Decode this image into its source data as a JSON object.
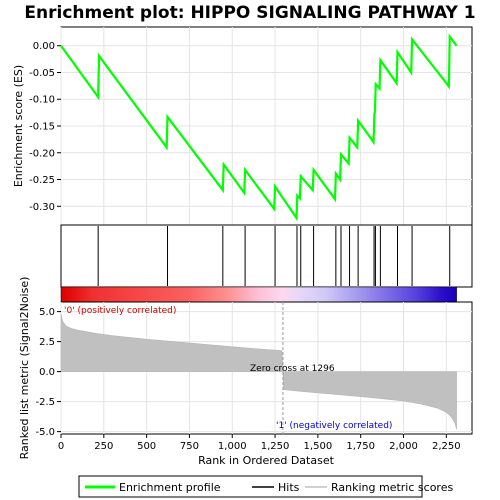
{
  "chart_data": {
    "type": "line",
    "title": "Enrichment plot: HIPPO SIGNALING PATHWAY 1",
    "top_panel": {
      "ylabel": "Enrichment score (ES)",
      "ylim": [
        -0.335,
        0.035
      ],
      "yticks": [
        0.0,
        -0.05,
        -0.1,
        -0.15,
        -0.2,
        -0.25,
        -0.3
      ],
      "ytick_labels": [
        "0.00",
        "-0.05",
        "-0.10",
        "-0.15",
        "-0.20",
        "-0.25",
        "-0.30"
      ],
      "series": [
        {
          "name": "Enrichment profile",
          "color": "#00ff00",
          "x": [
            0,
            217,
            222,
            617,
            622,
            945,
            950,
            1070,
            1075,
            1245,
            1250,
            1375,
            1380,
            1395,
            1400,
            1470,
            1475,
            1600,
            1605,
            1630,
            1635,
            1680,
            1685,
            1730,
            1735,
            1825,
            1830,
            1833,
            1838,
            1860,
            1865,
            1960,
            1965,
            2045,
            2050,
            2265,
            2270,
            2310
          ],
          "y": [
            0.0,
            -0.096,
            -0.019,
            -0.19,
            -0.133,
            -0.27,
            -0.222,
            -0.275,
            -0.232,
            -0.305,
            -0.263,
            -0.322,
            -0.28,
            -0.285,
            -0.244,
            -0.27,
            -0.232,
            -0.287,
            -0.239,
            -0.25,
            -0.203,
            -0.22,
            -0.172,
            -0.19,
            -0.14,
            -0.18,
            -0.128,
            -0.124,
            -0.072,
            -0.08,
            -0.027,
            -0.07,
            -0.012,
            -0.05,
            0.012,
            -0.076,
            0.017,
            0.0
          ]
        }
      ]
    },
    "hits_panel": {
      "name": "Hits",
      "positions": [
        217,
        622,
        945,
        1075,
        1250,
        1378,
        1400,
        1475,
        1605,
        1635,
        1685,
        1735,
        1828,
        1836,
        1865,
        1965,
        2050,
        2270
      ]
    },
    "rank_panel": {
      "ylabel": "Ranked list metric (Signal2Noise)",
      "ylim": [
        -5.2,
        5.8
      ],
      "yticks": [
        5.0,
        2.5,
        0.0,
        -2.5,
        -5.0
      ],
      "ytick_labels": [
        "5.0",
        "2.5",
        "0.0",
        "-2.5",
        "-5.0"
      ],
      "xlabel": "Rank in Ordered Dataset",
      "xlim": [
        0,
        2400
      ],
      "xticks": [
        0,
        250,
        500,
        750,
        1000,
        1250,
        1500,
        1750,
        2000,
        2250
      ],
      "xtick_labels": [
        "0",
        "250",
        "500",
        "750",
        "1,000",
        "1,250",
        "1,500",
        "1,750",
        "2,000",
        "2,250"
      ],
      "n_genes": 2310,
      "zero_cross": 1296,
      "metric_curve": {
        "name": "Ranking metric scores",
        "x": [
          0,
          10,
          30,
          60,
          100,
          200,
          300,
          500,
          700,
          900,
          1100,
          1290,
          1296,
          1300,
          1400,
          1600,
          1800,
          2000,
          2100,
          2200,
          2250,
          2280,
          2300,
          2310
        ],
        "y": [
          4.8,
          4.2,
          3.8,
          3.6,
          3.45,
          3.2,
          3.0,
          2.7,
          2.45,
          2.2,
          1.95,
          1.75,
          0.0,
          -1.5,
          -1.65,
          -1.9,
          -2.15,
          -2.45,
          -2.7,
          -3.05,
          -3.4,
          -3.8,
          -4.3,
          -4.8
        ]
      },
      "annotations": {
        "positive": "'0' (positively correlated)",
        "negative": "'1' (negatively correlated)",
        "zero_cross": "Zero cross at 1296"
      },
      "positive_color": "#dd0000",
      "negative_color": "#0000cc"
    },
    "legend": [
      {
        "label": "Enrichment profile",
        "color": "#00ff00"
      },
      {
        "label": "Hits",
        "color": "#000000"
      },
      {
        "label": "Ranking metric scores",
        "color": "#c0c0c0"
      }
    ],
    "legend_position": "bottom"
  }
}
